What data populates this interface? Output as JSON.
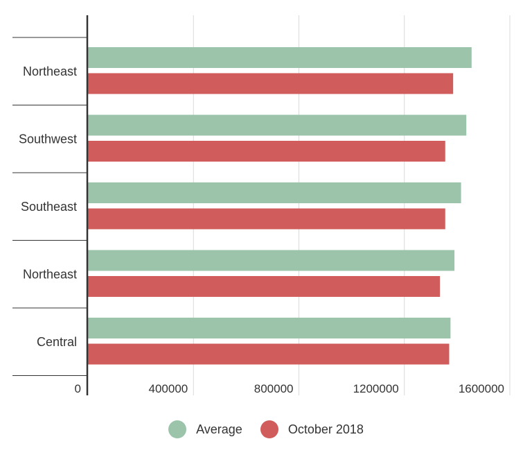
{
  "chart_data": {
    "type": "bar",
    "orientation": "horizontal",
    "title": "",
    "xlabel": "",
    "ylabel": "",
    "categories": [
      "Northeast",
      "Southwest",
      "Southeast",
      "Northeast",
      "Central"
    ],
    "series": [
      {
        "name": "Average",
        "color": "#9bc4ab",
        "values": [
          1455000,
          1435000,
          1415000,
          1390000,
          1375000
        ]
      },
      {
        "name": "October 2018",
        "color": "#d05c5c",
        "values": [
          1385000,
          1355000,
          1355000,
          1335000,
          1370000
        ]
      }
    ],
    "xlim": [
      0,
      1600000
    ],
    "xticks": [
      0,
      400000,
      800000,
      1200000,
      1600000
    ],
    "xtick_labels": [
      "0",
      "400000",
      "800000",
      "1200000",
      "1600000"
    ],
    "grid": true,
    "legend_position": "bottom"
  }
}
